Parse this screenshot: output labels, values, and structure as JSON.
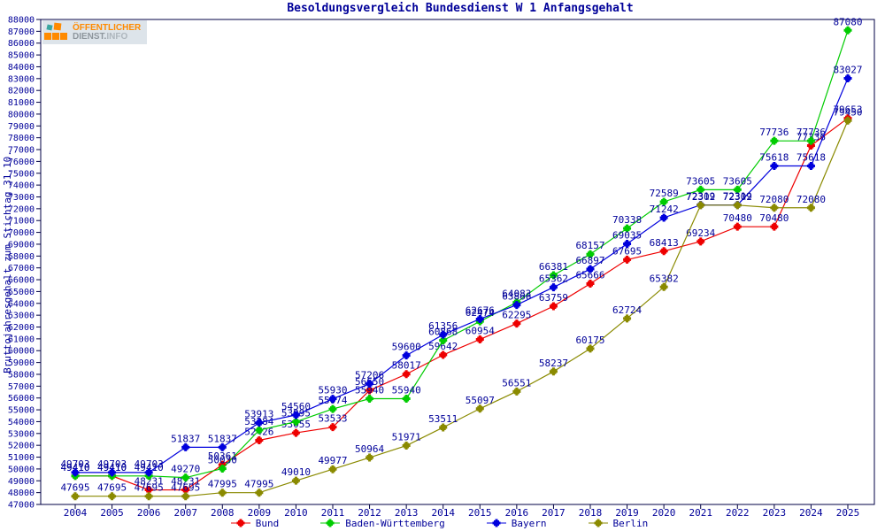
{
  "title": "Besoldungsvergleich Bundesdienst W 1 Anfangsgehalt",
  "y_axis_label": "Bruttojahresgehalt zum Stichtag 31.10.",
  "logo": {
    "line1": "ÖFFENTLICHER",
    "line2_part1": "DIENST.",
    "line2_part2": "INFO"
  },
  "colors": {
    "text": "#000099",
    "frame": "#000044",
    "background": "#ffffff",
    "bund": "#ee0000",
    "baden_wuerttemberg": "#00cc00",
    "bayern": "#0000dd",
    "berlin": "#8a8a00"
  },
  "chart_data": {
    "type": "line",
    "title": "Besoldungsvergleich Bundesdienst W 1 Anfangsgehalt",
    "xlabel": "",
    "ylabel": "Bruttojahresgehalt zum Stichtag 31.10.",
    "ylim": [
      47000,
      88000
    ],
    "y_tick_step": 1000,
    "grid": false,
    "legend_position": "bottom",
    "point_labels": true,
    "x": [
      2004,
      2005,
      2006,
      2007,
      2008,
      2009,
      2010,
      2011,
      2012,
      2013,
      2014,
      2015,
      2016,
      2017,
      2018,
      2019,
      2020,
      2021,
      2022,
      2023,
      2024,
      2025
    ],
    "series": [
      {
        "name": "Bund",
        "color": "#ee0000",
        "values": [
          49410,
          49410,
          48231,
          48231,
          50361,
          52426,
          53055,
          53533,
          56650,
          58017,
          59642,
          60954,
          62295,
          63759,
          65666,
          67695,
          68413,
          69234,
          70480,
          70480,
          77336,
          79653
        ]
      },
      {
        "name": "Baden-Württemberg",
        "color": "#00cc00",
        "values": [
          49410,
          49410,
          49410,
          49270,
          50030,
          53284,
          53995,
          55074,
          55940,
          55940,
          60868,
          62474,
          64083,
          66381,
          68157,
          70338,
          72589,
          73605,
          73605,
          77736,
          77736,
          87080
        ]
      },
      {
        "name": "Bayern",
        "color": "#0000dd",
        "values": [
          49703,
          49703,
          49703,
          51837,
          51837,
          53913,
          54560,
          55930,
          57206,
          59600,
          61356,
          62676,
          63866,
          65362,
          66897,
          69035,
          71242,
          72319,
          72319,
          75618,
          75618,
          83027
        ]
      },
      {
        "name": "Berlin",
        "color": "#8a8a00",
        "values": [
          47695,
          47695,
          47695,
          47695,
          47995,
          47995,
          49010,
          49977,
          50964,
          51971,
          53511,
          55097,
          56551,
          58237,
          60175,
          62724,
          65382,
          72302,
          72302,
          72080,
          72080,
          79450
        ]
      }
    ]
  }
}
